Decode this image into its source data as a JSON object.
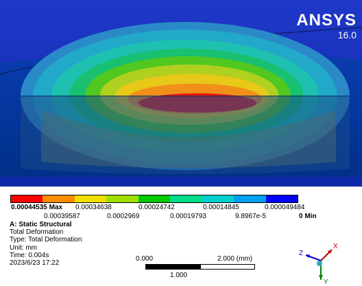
{
  "logo": {
    "brand": "ANSYS",
    "version": "16.0"
  },
  "legend": {
    "max_label": "0.00044535 Max",
    "min_label": "0 Min",
    "upper_values": [
      "0.00034638",
      "0.00024742",
      "0.00014845",
      "0.000049484"
    ],
    "lower_values": [
      "0.00039587",
      "0.0002969",
      "0.00019793",
      "9.8967e-5"
    ],
    "colors": [
      "#ff0000",
      "#ff8c00",
      "#f0e000",
      "#a0e000",
      "#00c800",
      "#00dc88",
      "#00d0d0",
      "#00a0f0",
      "#0000ff"
    ]
  },
  "info": {
    "title": "A: Static Structural",
    "line1": "Total Deformation",
    "line2": "Type: Total Deformation",
    "line3": "Unit: mm",
    "line4": "Time: 0.004s",
    "line5": "2023/6/23 17:22"
  },
  "scale_bar": {
    "left": "0.000",
    "right": "2.000 (mm)",
    "mid": "1.000"
  },
  "triad": {
    "x": "X",
    "y": "Y",
    "z": "Z"
  },
  "colors": {
    "background_top": "#1d2cb4",
    "background_mid": "#1536b8",
    "plate": "#002a8a"
  }
}
